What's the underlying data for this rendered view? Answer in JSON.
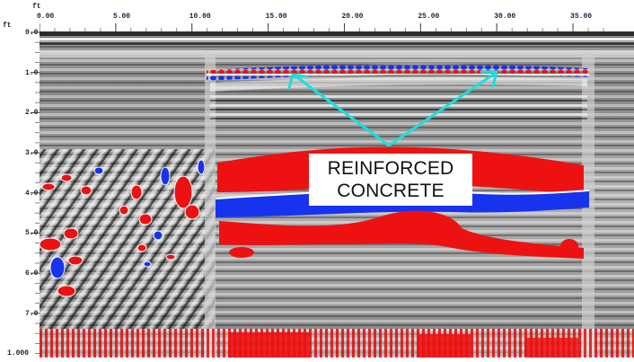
{
  "header": {
    "corner_top": "ft",
    "corner_left": "ft",
    "bottom_left": "1.000"
  },
  "x_axis": {
    "ticks": [
      {
        "label": "0.00",
        "value": 0
      },
      {
        "label": "5.00",
        "value": 5
      },
      {
        "label": "10.00",
        "value": 10
      },
      {
        "label": "15.00",
        "value": 15
      },
      {
        "label": "20.00",
        "value": 20
      },
      {
        "label": "25.00",
        "value": 25
      },
      {
        "label": "30.00",
        "value": 30
      },
      {
        "label": "35.00",
        "value": 35
      }
    ],
    "range": [
      0,
      37
    ]
  },
  "y_axis": {
    "ticks": [
      {
        "label": "0.0",
        "value": 0
      },
      {
        "label": "1.0",
        "value": 1
      },
      {
        "label": "2.0",
        "value": 2
      },
      {
        "label": "3.0",
        "value": 3
      },
      {
        "label": "4.0",
        "value": 4
      },
      {
        "label": "5.0",
        "value": 5
      },
      {
        "label": "6.0",
        "value": 6
      },
      {
        "label": "7.0",
        "value": 7
      }
    ],
    "range": [
      0,
      8.1
    ]
  },
  "annotation": {
    "line1": "REINFORCED",
    "line2": "CONCRETE",
    "arrow_color": "#19e0e0"
  },
  "colors": {
    "positive": "#ee1111",
    "negative": "#1833ee",
    "background_gray": "#8f8f8f"
  }
}
